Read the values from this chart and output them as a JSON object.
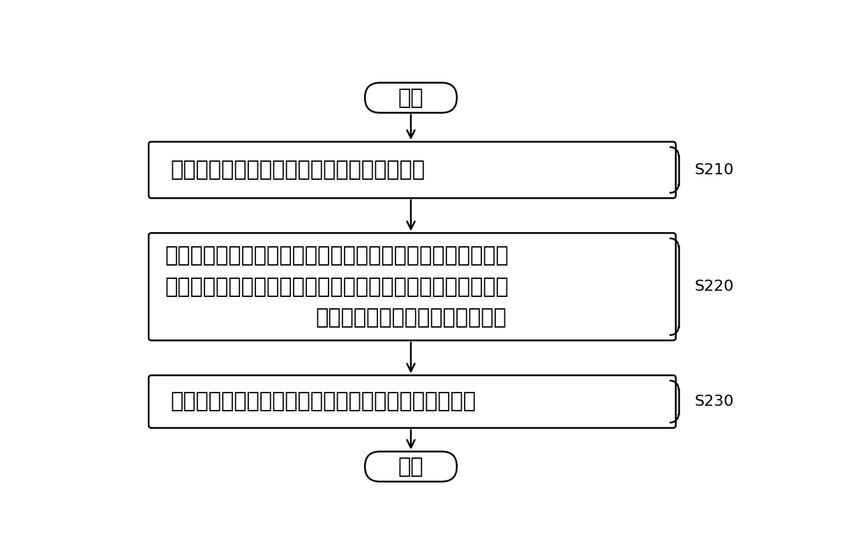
{
  "bg_color": "#ffffff",
  "border_color": "#000000",
  "text_color": "#000000",
  "fig_width": 12.4,
  "fig_height": 7.96,
  "start_label": "开始",
  "end_label": "结束",
  "box1_text": "获取容置压缩机的室外机所处的室外环境温度",
  "box2_line1": "若室外环境温度不小于温度阈値，且连接同一室外机的室内机",
  "box2_line2": "开机数量增加，则依据室外环境温度、处于开机状态的室内机",
  "box2_line3": "总负荷计算压缩机的目标工作频率",
  "box3_text": "将压缩机的当前工作频率调节为目标工作频率进行工作",
  "label_s210": "S210",
  "label_s220": "S220",
  "label_s230": "S230",
  "font_size_main": 22,
  "font_size_label": 16,
  "font_size_capsule": 22
}
